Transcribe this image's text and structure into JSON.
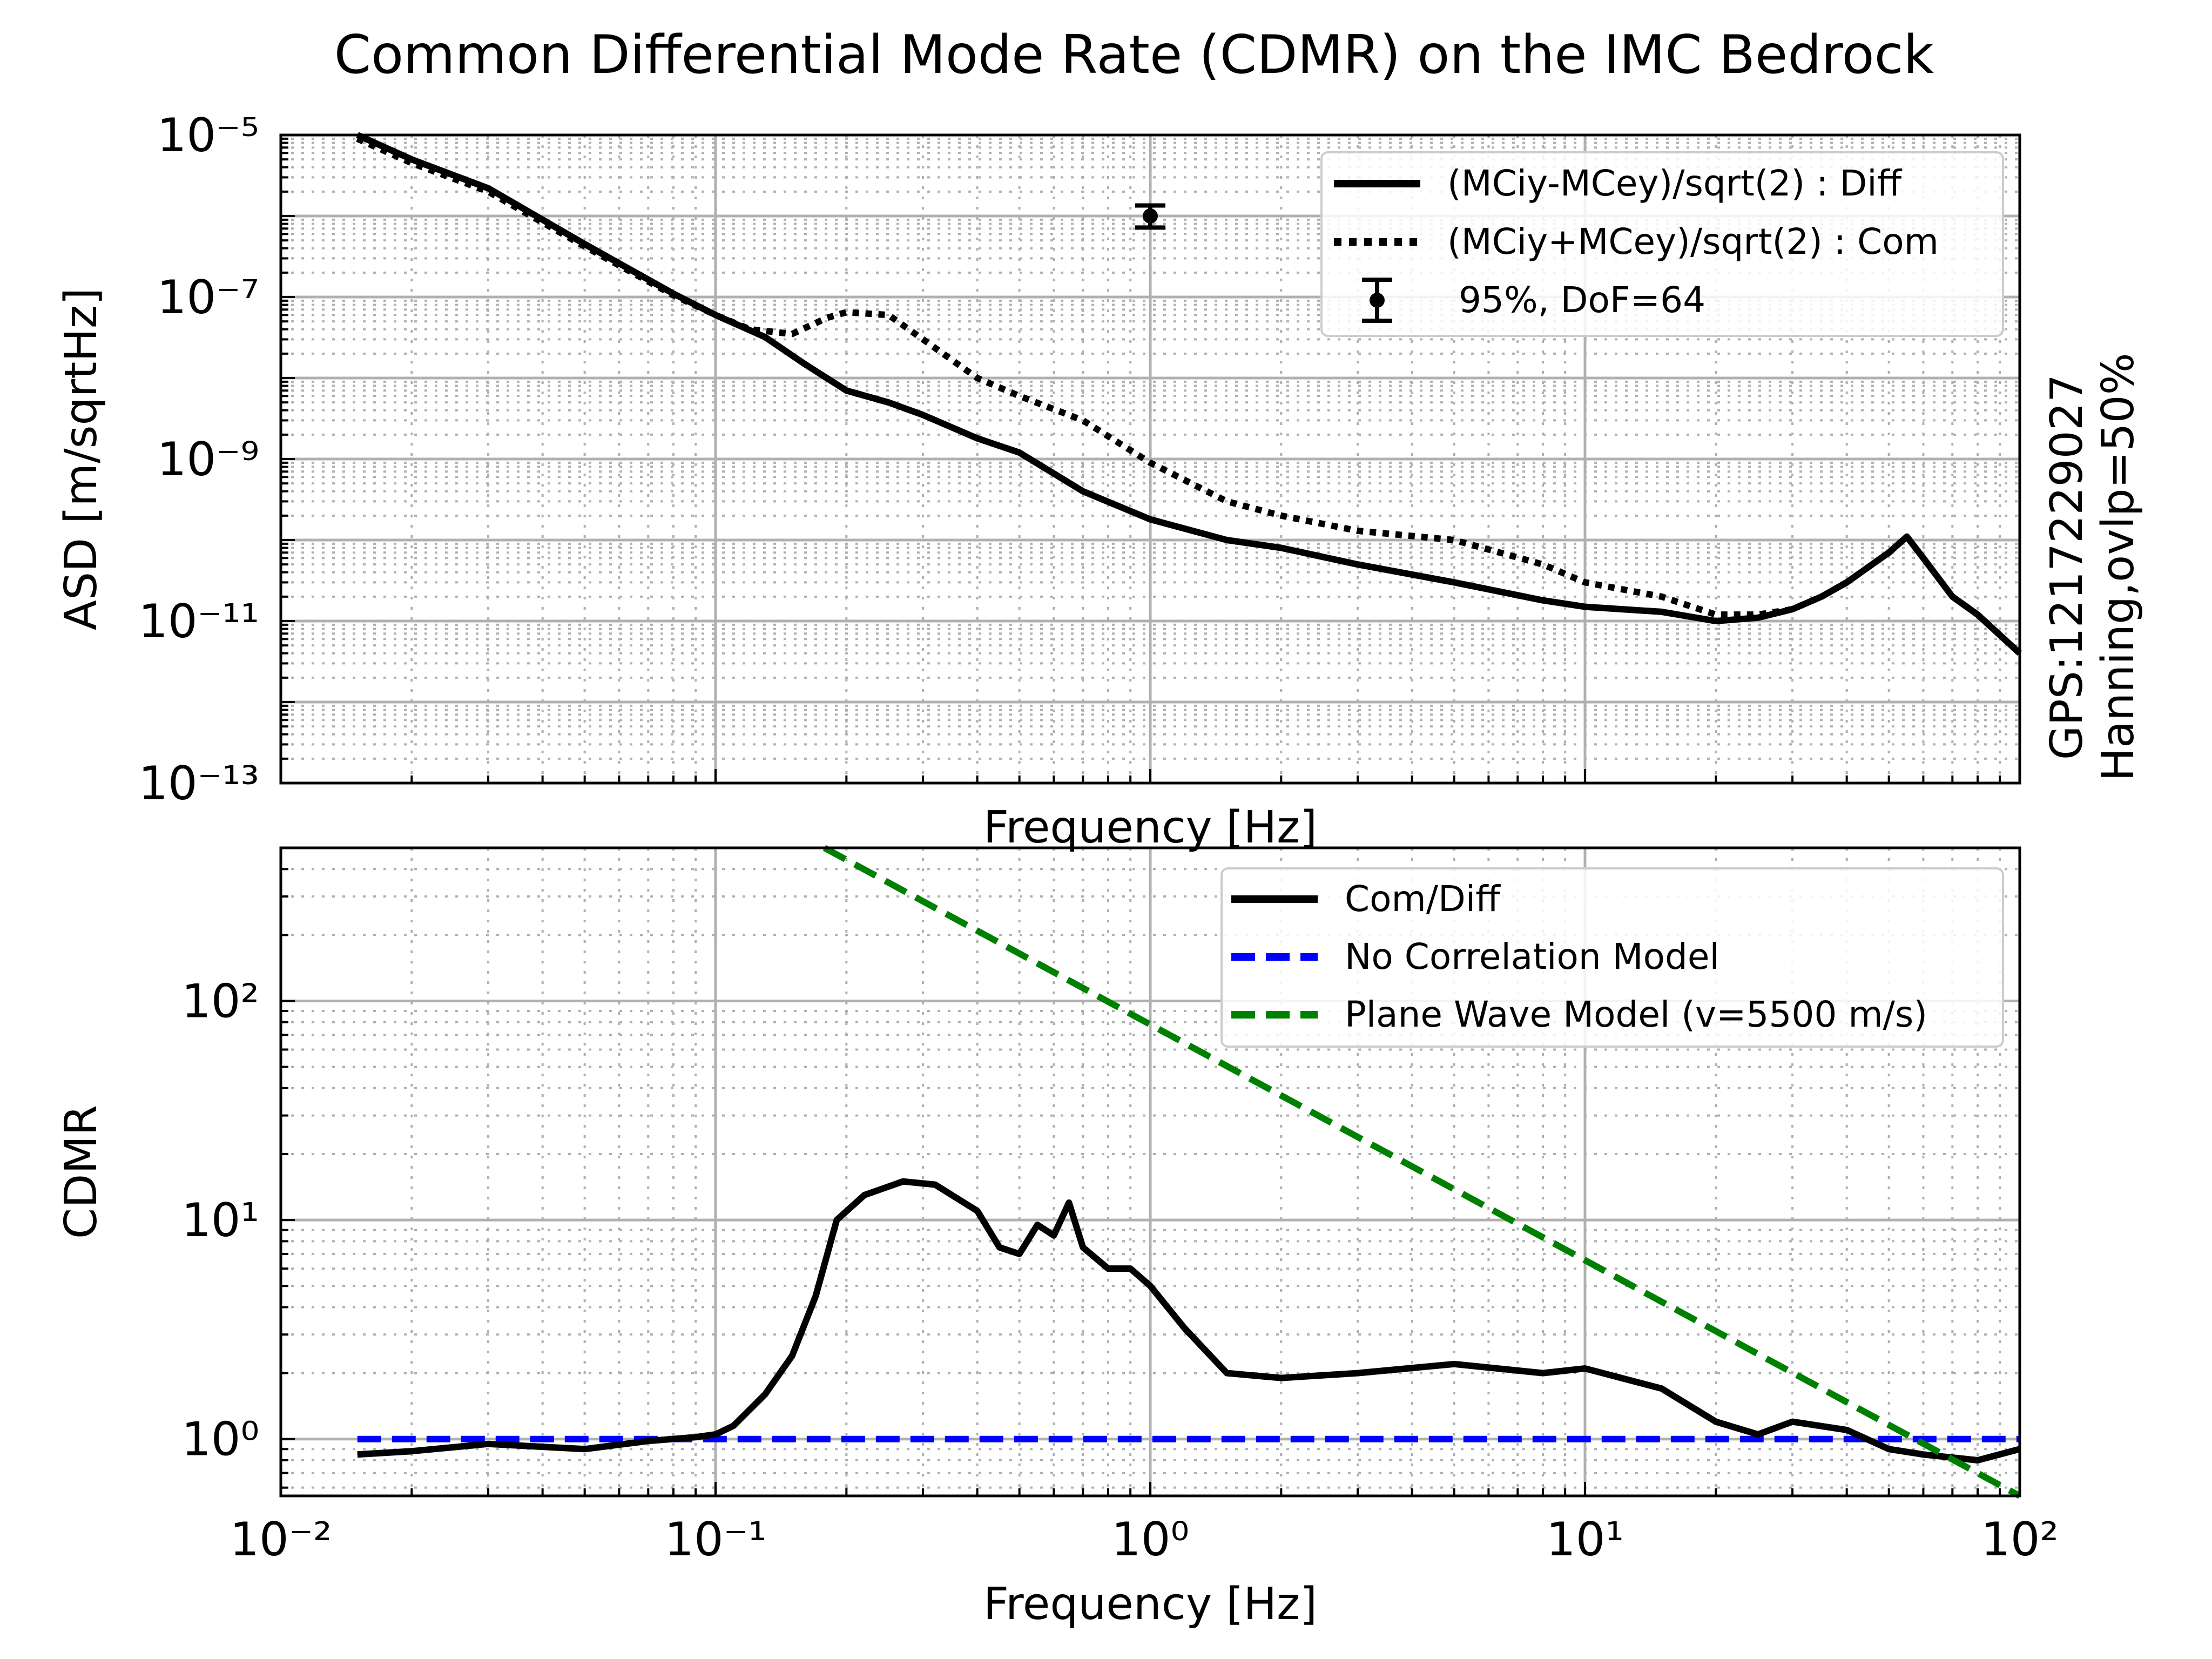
{
  "figure": {
    "title": "Common Differential Mode Rate (CDMR) on the IMC Bedrock",
    "side_annotation": {
      "line1": "GPS:1217229027",
      "line2": "Hanning,ovlp=50%"
    }
  },
  "colors": {
    "diff": "#000000",
    "com": "#000000",
    "ratio": "#000000",
    "no_correlation": "#0000ff",
    "plane_wave": "#008000"
  },
  "chart_data": [
    {
      "type": "line",
      "id": "asd",
      "xlabel": "Frequency [Hz]",
      "ylabel": "ASD [m/sqrtHz]",
      "xscale": "log",
      "yscale": "log",
      "xlim": [
        0.01,
        100
      ],
      "ylim": [
        1e-13,
        1e-05
      ],
      "x_ticks": [
        {
          "value": 0.01,
          "label": "10⁻²"
        },
        {
          "value": 0.1,
          "label": "10⁻¹"
        },
        {
          "value": 1,
          "label": "10⁰"
        },
        {
          "value": 10,
          "label": "10¹"
        },
        {
          "value": 100,
          "label": "10²"
        }
      ],
      "y_ticks": [
        {
          "value": 1e-13,
          "label": "10⁻¹³"
        },
        {
          "value": 1e-11,
          "label": "10⁻¹¹"
        },
        {
          "value": 1e-09,
          "label": "10⁻⁹"
        },
        {
          "value": 1e-07,
          "label": "10⁻⁷"
        },
        {
          "value": 1e-05,
          "label": "10⁻⁵"
        }
      ],
      "grid": true,
      "legend_position": "top-right",
      "series": [
        {
          "name": "(MCiy-MCey)/sqrt(2) : Diff",
          "style": "solid",
          "x": [
            0.015,
            0.02,
            0.03,
            0.05,
            0.08,
            0.1,
            0.13,
            0.16,
            0.2,
            0.25,
            0.3,
            0.4,
            0.5,
            0.7,
            1,
            1.5,
            2,
            3,
            5,
            8,
            10,
            15,
            20,
            25,
            30,
            35,
            40,
            50,
            55,
            60,
            70,
            80,
            100
          ],
          "y": [
            1e-05,
            5e-06,
            2.2e-06,
            4.5e-07,
            1.1e-07,
            6e-08,
            3.2e-08,
            1.5e-08,
            7e-09,
            5e-09,
            3.5e-09,
            1.8e-09,
            1.2e-09,
            4e-10,
            1.8e-10,
            1e-10,
            8e-11,
            5e-11,
            3e-11,
            1.8e-11,
            1.5e-11,
            1.3e-11,
            1e-11,
            1.1e-11,
            1.4e-11,
            2e-11,
            3e-11,
            7e-11,
            1.1e-10,
            6e-11,
            2e-11,
            1.2e-11,
            4e-12
          ]
        },
        {
          "name": "(MCiy+MCey)/sqrt(2) : Com",
          "style": "dotted",
          "x": [
            0.015,
            0.02,
            0.03,
            0.05,
            0.08,
            0.1,
            0.12,
            0.15,
            0.18,
            0.2,
            0.25,
            0.3,
            0.4,
            0.5,
            0.7,
            1,
            1.5,
            2,
            3,
            5,
            8,
            10,
            15,
            20,
            25,
            30,
            35,
            40,
            50,
            55,
            60,
            70,
            80,
            100
          ],
          "y": [
            9e-06,
            4.5e-06,
            2e-06,
            4.2e-07,
            1.05e-07,
            6e-08,
            4e-08,
            3.5e-08,
            5.5e-08,
            6.5e-08,
            6e-08,
            3e-08,
            1e-08,
            6e-09,
            3e-09,
            9e-10,
            3e-10,
            2e-10,
            1.3e-10,
            1e-10,
            5e-11,
            3e-11,
            2e-11,
            1.2e-11,
            1.2e-11,
            1.4e-11,
            2e-11,
            3e-11,
            7e-11,
            1.1e-10,
            6e-11,
            2e-11,
            1.2e-11,
            4e-12
          ]
        },
        {
          "name": " 95%, DoF=64",
          "style": "errorbar",
          "x": [
            1
          ],
          "y": [
            1e-06
          ],
          "y_low": [
            7.2e-07
          ],
          "y_high": [
            1.35e-06
          ]
        }
      ]
    },
    {
      "type": "line",
      "id": "cdmr",
      "xlabel": "Frequency [Hz]",
      "ylabel": "CDMR",
      "xscale": "log",
      "yscale": "log",
      "xlim": [
        0.01,
        100
      ],
      "ylim": [
        0.55,
        500
      ],
      "x_ticks": [
        {
          "value": 0.01,
          "label": "10⁻²"
        },
        {
          "value": 0.1,
          "label": "10⁻¹"
        },
        {
          "value": 1,
          "label": "10⁰"
        },
        {
          "value": 10,
          "label": "10¹"
        },
        {
          "value": 100,
          "label": "10²"
        }
      ],
      "y_ticks": [
        {
          "value": 1,
          "label": "10⁰"
        },
        {
          "value": 10,
          "label": "10¹"
        },
        {
          "value": 100,
          "label": "10²"
        }
      ],
      "grid": true,
      "legend_position": "top-right",
      "series": [
        {
          "name": "Com/Diff",
          "style": "solid",
          "x": [
            0.015,
            0.02,
            0.03,
            0.05,
            0.07,
            0.09,
            0.1,
            0.11,
            0.13,
            0.15,
            0.17,
            0.19,
            0.22,
            0.27,
            0.32,
            0.4,
            0.45,
            0.5,
            0.55,
            0.6,
            0.65,
            0.7,
            0.8,
            0.9,
            1,
            1.2,
            1.5,
            2,
            3,
            5,
            8,
            10,
            15,
            20,
            25,
            30,
            40,
            50,
            60,
            80,
            100
          ],
          "y": [
            0.85,
            0.88,
            0.95,
            0.9,
            0.98,
            1.02,
            1.05,
            1.15,
            1.6,
            2.4,
            4.5,
            10,
            13,
            15,
            14.5,
            11,
            7.5,
            7,
            9.5,
            8.5,
            12,
            7.5,
            6,
            6,
            5,
            3.2,
            2,
            1.9,
            2,
            2.2,
            2,
            2.1,
            1.7,
            1.2,
            1.05,
            1.2,
            1.1,
            0.9,
            0.85,
            0.8,
            0.9
          ]
        },
        {
          "name": "No Correlation Model",
          "style": "dashed",
          "x": [
            0.015,
            100
          ],
          "y": [
            1,
            1
          ]
        },
        {
          "name": "Plane Wave Model (v=5500 m/s)",
          "style": "dashed",
          "x": [
            0.178,
            100
          ],
          "y": [
            500,
            0.55
          ]
        }
      ]
    }
  ]
}
